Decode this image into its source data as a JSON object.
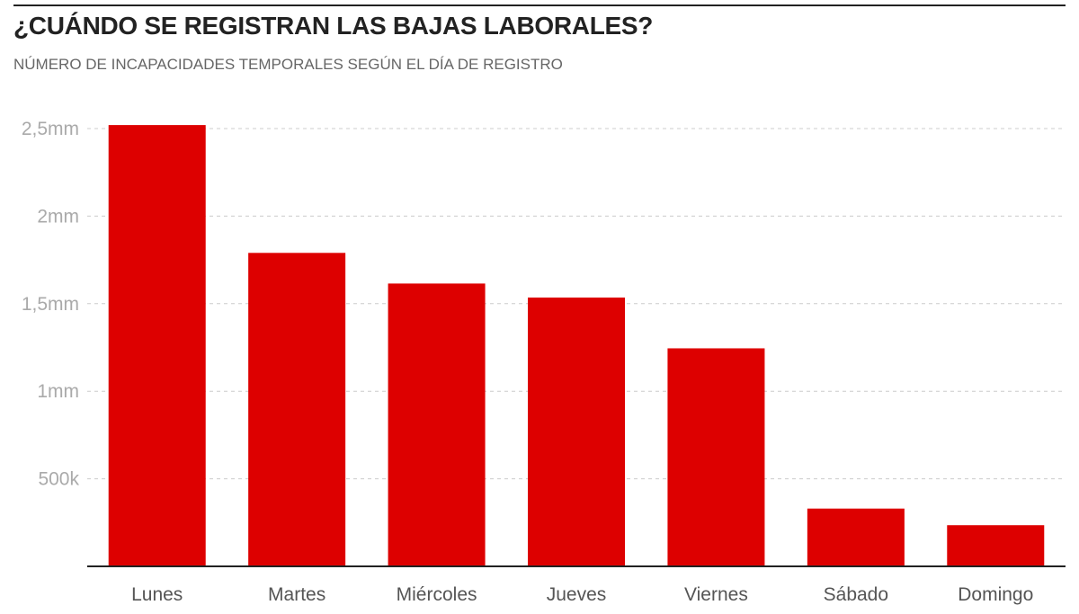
{
  "header": {
    "title": "¿CUÁNDO SE REGISTRAN LAS BAJAS LABORALES?",
    "subtitle": "NÚMERO DE INCAPACIDADES TEMPORALES SEGÚN EL DÍA DE REGISTRO"
  },
  "chart_data": {
    "type": "bar",
    "title": "¿CUÁNDO SE REGISTRAN LAS BAJAS LABORALES?",
    "subtitle": "NÚMERO DE INCAPACIDADES TEMPORALES SEGÚN EL DÍA DE REGISTRO",
    "categories": [
      "Lunes",
      "Martes",
      "Miércoles",
      "Jueves",
      "Viernes",
      "Sábado",
      "Domingo"
    ],
    "values": [
      2520000,
      1790000,
      1615000,
      1535000,
      1245000,
      330000,
      235000
    ],
    "xlabel": "",
    "ylabel": "",
    "ylim": [
      0,
      2500000
    ],
    "yticks": [
      {
        "value": 500000,
        "label": "500k"
      },
      {
        "value": 1000000,
        "label": "1mm"
      },
      {
        "value": 1500000,
        "label": "1,5mm"
      },
      {
        "value": 2000000,
        "label": "2mm"
      },
      {
        "value": 2500000,
        "label": "2,5mm"
      }
    ],
    "grid": true,
    "bar_color": "#dd0000",
    "grid_color": "#cccccc",
    "axis_color": "#222222",
    "tick_label_color": "#aaaaaa",
    "category_label_color": "#555555"
  }
}
